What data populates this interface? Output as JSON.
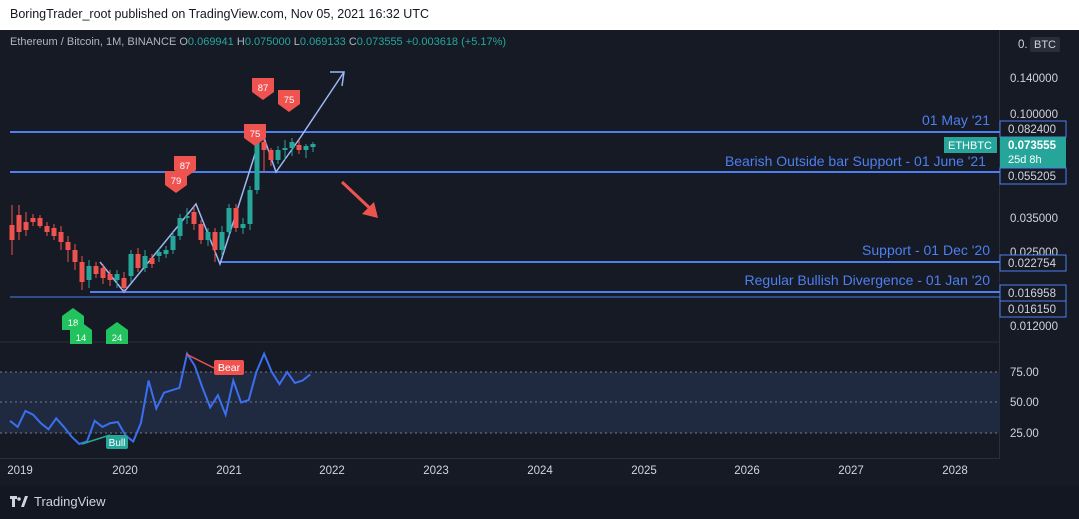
{
  "header": {
    "publish_text": "BoringTrader_root published on TradingView.com, Nov 05, 2021 16:32 UTC"
  },
  "legend": {
    "symbol": "Ethereum / Bitcoin, 1M, BINANCE",
    "o_label": "O",
    "o_value": "0.069941",
    "h_label": "H",
    "h_value": "0.075000",
    "l_label": "L",
    "l_value": "0.069133",
    "c_label": "C",
    "c_value": "0.073555",
    "change": "+0.003618 (+5.17%)"
  },
  "price_axis": {
    "currency": "BTC",
    "ticks": [
      "0.140000",
      "0.100000",
      "0.035000",
      "0.025000",
      "0.012000"
    ],
    "top_tick": "0."
  },
  "price_labels": {
    "level_1": "0.082400",
    "symbol_tag": "ETHBTC",
    "last_price": "0.073555",
    "countdown": "25d 8h",
    "level_2": "0.055205",
    "level_3": "0.022754",
    "level_4": "0.016958",
    "level_5": "0.016150"
  },
  "annotations": {
    "line_1": "01 May '21",
    "line_2": "Bearish Outside bar Support - 01 June '21",
    "line_3": "Support - 01 Dec '20",
    "line_4": "Regular Bullish Divergence - 01 Jan '20"
  },
  "signals": {
    "sell_1": "87",
    "sell_2": "75",
    "sell_3": "75",
    "sell_4": "87",
    "sell_5": "79",
    "buy_1": "18",
    "buy_2": "14",
    "buy_3": "24"
  },
  "oscillator": {
    "ticks": [
      "75.00",
      "50.00",
      "25.00"
    ],
    "bear_label": "Bear",
    "bull_label": "Bull",
    "values": [
      35,
      30,
      43,
      40,
      33,
      28,
      37,
      30,
      22,
      16,
      18,
      35,
      30,
      33,
      34,
      23,
      18,
      33,
      68,
      45,
      58,
      60,
      62,
      90,
      80,
      62,
      46,
      56,
      40,
      68,
      50,
      52,
      75,
      90,
      75,
      65,
      75,
      66,
      68,
      73
    ]
  },
  "time_axis": {
    "labels": [
      "2019",
      "2020",
      "2021",
      "2022",
      "2023",
      "2024",
      "2025",
      "2026",
      "2027",
      "2028"
    ]
  },
  "footer": {
    "brand": "TradingView"
  },
  "colors": {
    "up": "#26a69a",
    "down": "#ef5350",
    "level_line": "#4d7ff0",
    "osc_line": "#3b6ff0",
    "background": "#161a25"
  }
}
